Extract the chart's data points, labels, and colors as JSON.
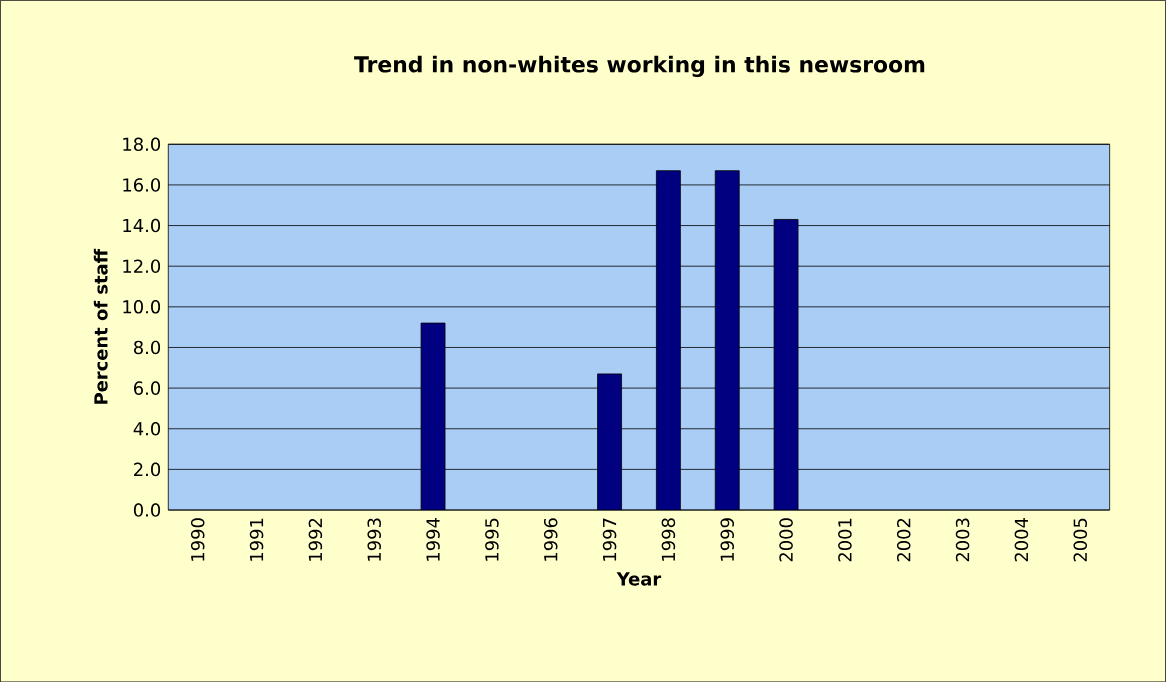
{
  "chart_data": {
    "type": "bar",
    "title": "Trend in non-whites working in this newsroom",
    "xlabel": "Year",
    "ylabel": "Percent of staff",
    "categories": [
      "1990",
      "1991",
      "1992",
      "1993",
      "1994",
      "1995",
      "1996",
      "1997",
      "1998",
      "1999",
      "2000",
      "2001",
      "2002",
      "2003",
      "2004",
      "2005"
    ],
    "values": [
      null,
      null,
      null,
      null,
      9.2,
      null,
      null,
      6.7,
      16.7,
      16.7,
      14.3,
      null,
      null,
      null,
      null,
      null
    ],
    "color": "#000080",
    "ylim": [
      0,
      18
    ],
    "yticks": [
      {
        "value": 0,
        "label": "0.0"
      },
      {
        "value": 2,
        "label": "2.0"
      },
      {
        "value": 4,
        "label": "4.0"
      },
      {
        "value": 6,
        "label": "6.0"
      },
      {
        "value": 8,
        "label": "8.0"
      },
      {
        "value": 10,
        "label": "10.0"
      },
      {
        "value": 12,
        "label": "12.0"
      },
      {
        "value": 14,
        "label": "14.0"
      },
      {
        "value": 16,
        "label": "16.0"
      },
      {
        "value": 18,
        "label": "18.0"
      }
    ],
    "grid": "y"
  }
}
